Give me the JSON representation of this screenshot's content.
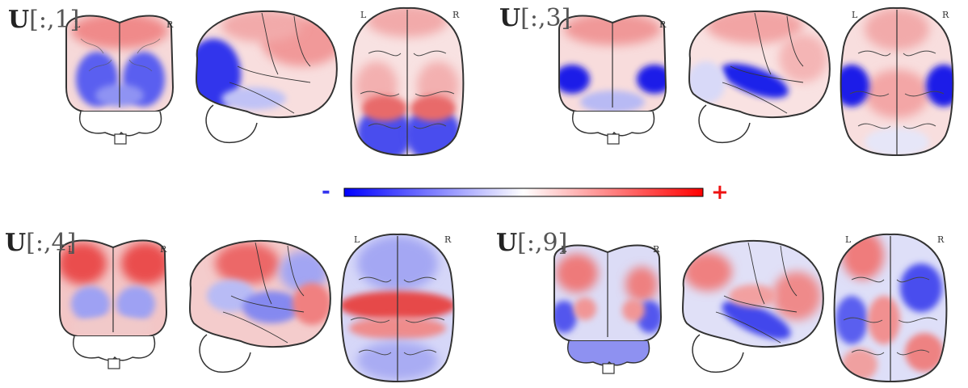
{
  "panels": [
    {
      "prefix": "U",
      "index": "[:,1]",
      "left_label": "L",
      "right_label": "R",
      "top_left_label": "L",
      "top_right_label": "R"
    },
    {
      "prefix": "U",
      "index": "[:,3]",
      "left_label": "L",
      "right_label": "R",
      "top_left_label": "L",
      "top_right_label": "R"
    },
    {
      "prefix": "U",
      "index": "[:,4]",
      "left_label": "L",
      "right_label": "R",
      "top_left_label": "L",
      "top_right_label": "R"
    },
    {
      "prefix": "U",
      "index": "[:,9]",
      "left_label": "L",
      "right_label": "R",
      "top_left_label": "L",
      "top_right_label": "R"
    }
  ],
  "colorbar": {
    "minus": "-",
    "plus": "+",
    "neg_color": "#0000ff",
    "mid_color": "#ffffff",
    "pos_color": "#ff0000",
    "minus_color": "#3333ee",
    "plus_color": "#ee1111"
  },
  "views": [
    "coronal-back",
    "sagittal",
    "axial-top"
  ]
}
